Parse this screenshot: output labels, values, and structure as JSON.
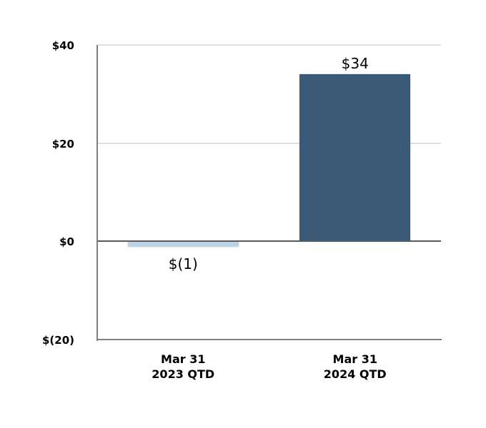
{
  "chart_data": {
    "type": "bar",
    "categories": [
      "Mar 31 2023 QTD",
      "Mar 31 2024 QTD"
    ],
    "category_lines": [
      [
        "Mar 31",
        "2023 QTD"
      ],
      [
        "Mar 31",
        "2024 QTD"
      ]
    ],
    "values": [
      -1,
      34
    ],
    "data_labels": [
      "$(1)",
      "$34"
    ],
    "series_colors": [
      "#B9D4E9",
      "#3B5A77"
    ],
    "y_ticks": [
      {
        "value": 40,
        "label": "$40"
      },
      {
        "value": 20,
        "label": "$20"
      },
      {
        "value": 0,
        "label": "$0"
      },
      {
        "value": -20,
        "label": "$(20)"
      }
    ],
    "ylim": [
      -20,
      40
    ],
    "grid": true,
    "legend_position": "none",
    "colors": {
      "background": "#FFFFFF",
      "axis": "#808080",
      "zero_line": "#5A5A5A",
      "gridline": "#E0E0E0",
      "text": "#000000"
    }
  }
}
